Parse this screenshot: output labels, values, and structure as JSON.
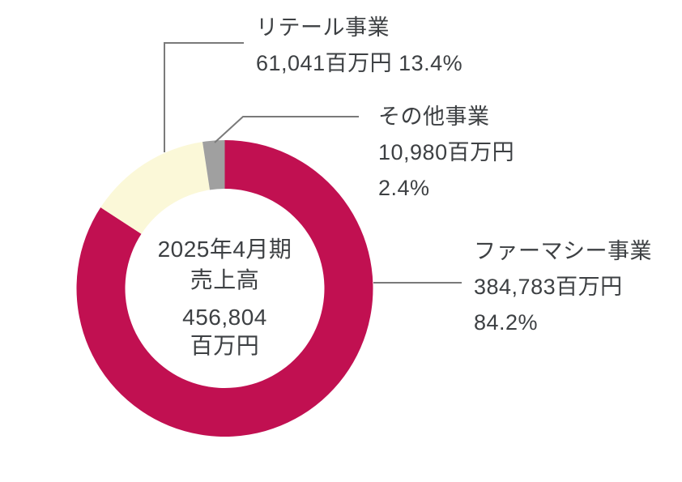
{
  "chart_data": {
    "type": "donut",
    "direction": "clockwise",
    "start_angle_deg": 0,
    "legend_position": "callout-labels",
    "unit": "百万円",
    "total_value": 456804,
    "center": {
      "period": "2025年4月期",
      "metric": "売上高",
      "value": "456,804",
      "unit": "百万円"
    },
    "series": [
      {
        "key": "pharmacy",
        "name": "ファーマシー事業",
        "value": 384783,
        "value_label": "384,783百万円",
        "pct": 84.2,
        "pct_label": "84.2%",
        "color": "#C11051"
      },
      {
        "key": "retail",
        "name": "リテール事業",
        "value": 61041,
        "value_label": "61,041百万円",
        "pct": 13.4,
        "pct_label": "13.4%",
        "color": "#FBF8D8"
      },
      {
        "key": "other",
        "name": "その他事業",
        "value": 10980,
        "value_label": "10,980百万円",
        "pct": 2.4,
        "pct_label": "2.4%",
        "color": "#A0A0A0"
      }
    ]
  },
  "palette": {
    "text": "#3D4043",
    "leader_line": "#7A7A7A",
    "background": "#FFFFFF"
  }
}
